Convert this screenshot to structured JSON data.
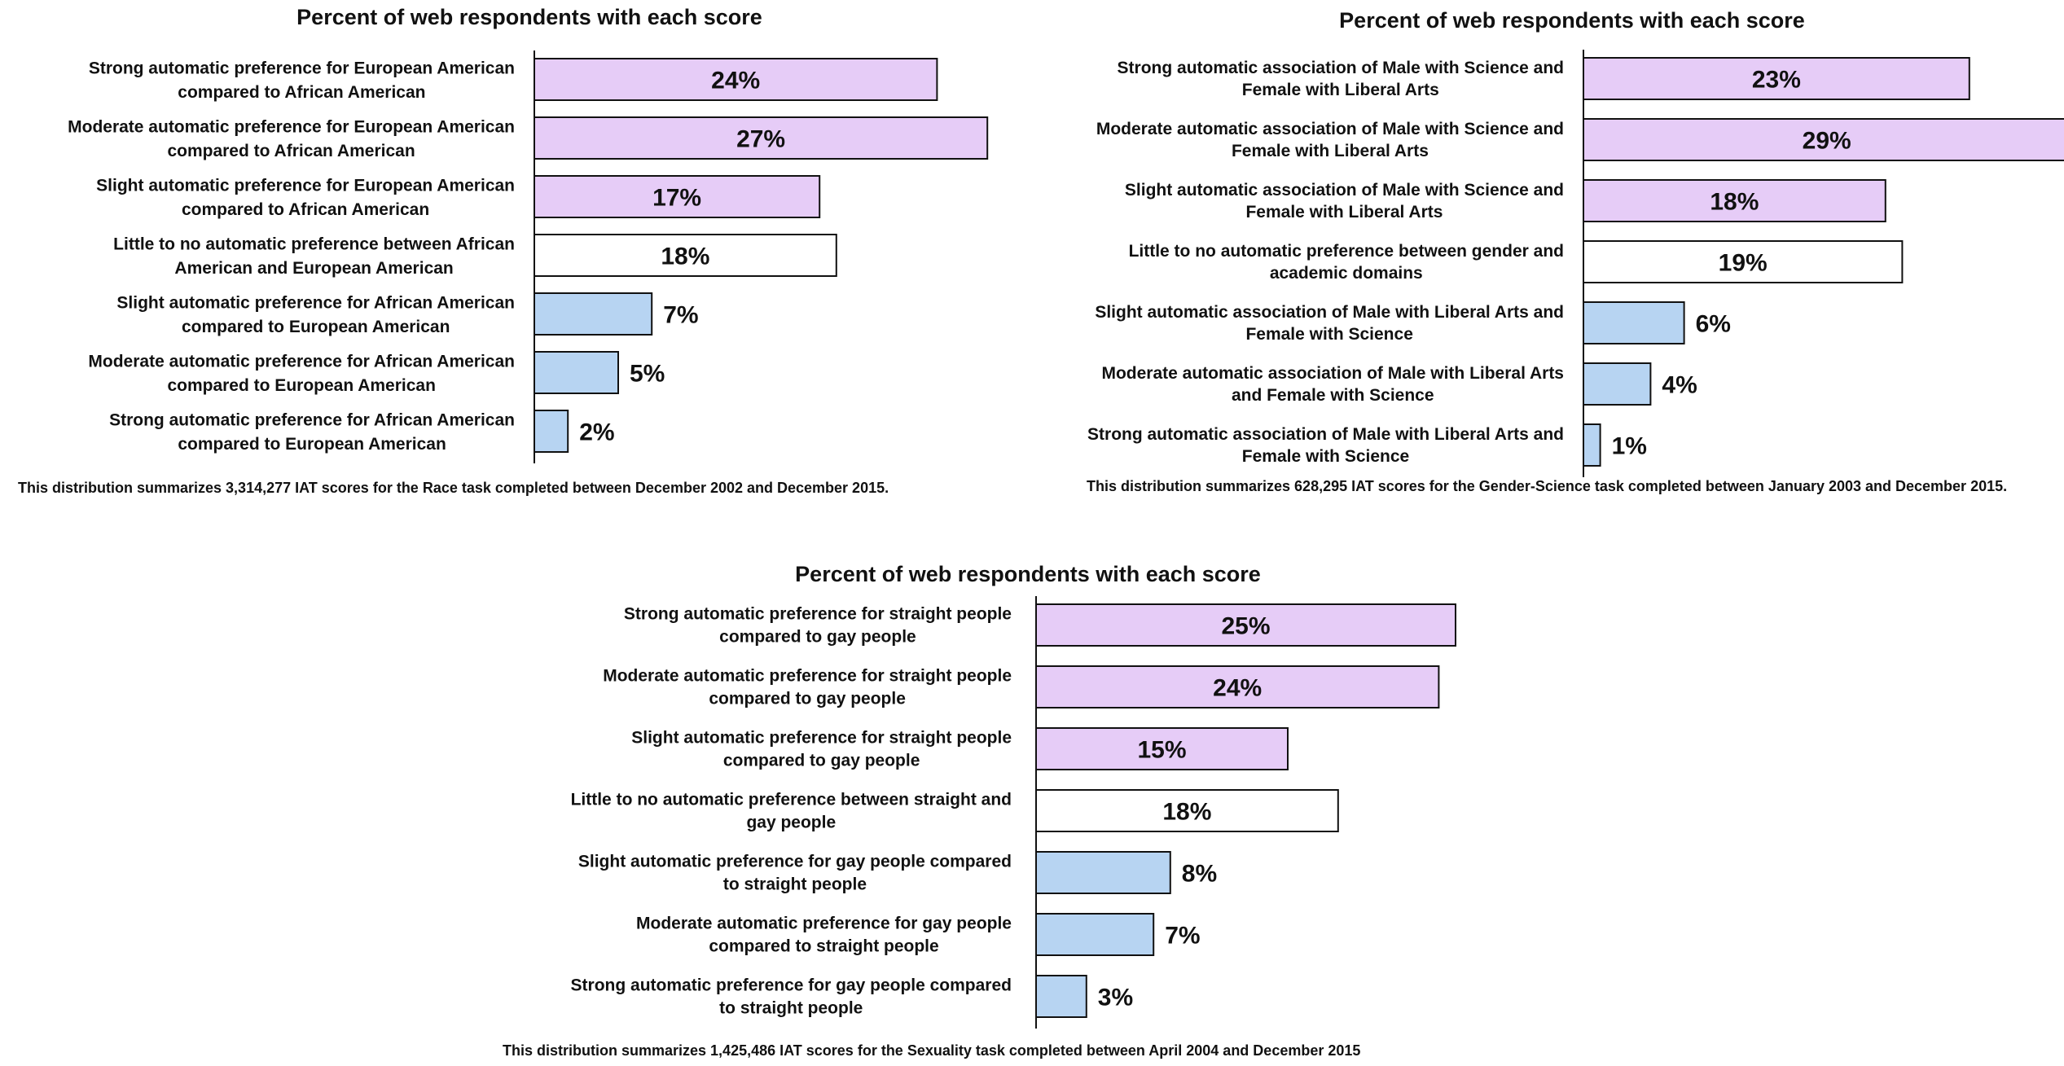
{
  "chart_data": [
    {
      "type": "bar",
      "title": "Percent of web respondents with each score",
      "categories": [
        "Strong automatic preference for European American compared to African American",
        "Moderate automatic preference for European American compared to African American",
        "Slight automatic preference for European American compared to African American",
        "Little to no automatic preference between African American and European American",
        "Slight automatic preference for African American compared to European American",
        "Moderate automatic preference for African American compared to European American",
        "Strong automatic preference for African American compared to European American"
      ],
      "category_lines": [
        [
          "Strong automatic preference for European American",
          "compared to African American"
        ],
        [
          "Moderate automatic preference for European American",
          "compared to African American"
        ],
        [
          "Slight automatic preference for European American",
          "compared to African American"
        ],
        [
          "Little to no automatic preference between African",
          "American and European American"
        ],
        [
          "Slight automatic preference for African American",
          "compared to European American"
        ],
        [
          "Moderate automatic preference for African American",
          "compared to European American"
        ],
        [
          "Strong automatic preference for African American",
          "compared to European American"
        ]
      ],
      "values": [
        24,
        27,
        17,
        18,
        7,
        5,
        2
      ],
      "value_labels": [
        "24%",
        "27%",
        "17%",
        "18%",
        "7%",
        "5%",
        "2%"
      ],
      "orientation": "horizontal",
      "footnote": "This distribution summarizes 3,314,277 IAT scores for the Race task completed between December 2002 and December 2015.",
      "colors": [
        "#e6ccf7",
        "#e6ccf7",
        "#e6ccf7",
        "#ffffff",
        "#b7d4f2",
        "#b7d4f2",
        "#b7d4f2"
      ]
    },
    {
      "type": "bar",
      "title": "Percent of web respondents with each score",
      "categories": [
        "Strong automatic association of Male with Science and Female with Liberal Arts",
        "Moderate automatic association of Male with Science and Female with Liberal Arts",
        "Slight automatic association of Male with Science and Female with Liberal Arts",
        "Little to no automatic preference between gender and academic domains",
        "Slight automatic association of Male with Liberal Arts and Female with Science",
        "Moderate automatic association of Male with Liberal Arts and Female with Science",
        "Strong automatic association of Male with Liberal Arts and Female with Science"
      ],
      "category_lines": [
        [
          "Strong automatic association of Male with Science and",
          "Female with Liberal Arts"
        ],
        [
          "Moderate automatic association of Male with Science and",
          "Female with Liberal Arts"
        ],
        [
          "Slight automatic association of Male with Science and",
          "Female with Liberal Arts"
        ],
        [
          "Little to no automatic preference between gender and",
          "academic domains"
        ],
        [
          "Slight automatic association of Male with Liberal Arts and",
          "Female with Science"
        ],
        [
          "Moderate automatic association of Male with Liberal Arts",
          "and Female with Science"
        ],
        [
          "Strong automatic association of Male with Liberal Arts and",
          "Female with Science"
        ]
      ],
      "values": [
        23,
        29,
        18,
        19,
        6,
        4,
        1
      ],
      "value_labels": [
        "23%",
        "29%",
        "18%",
        "19%",
        "6%",
        "4%",
        "1%"
      ],
      "orientation": "horizontal",
      "footnote": "This distribution summarizes 628,295 IAT scores for the Gender-Science task completed between January 2003 and December 2015.",
      "colors": [
        "#e6ccf7",
        "#e6ccf7",
        "#e6ccf7",
        "#ffffff",
        "#b7d4f2",
        "#b7d4f2",
        "#b7d4f2"
      ]
    },
    {
      "type": "bar",
      "title": "Percent of web respondents with each score",
      "categories": [
        "Strong automatic preference for straight people compared to gay people",
        "Moderate automatic preference for straight people compared to gay people",
        "Slight automatic preference for straight people compared to gay people",
        "Little to no automatic preference between straight and gay people",
        "Slight automatic preference for gay people compared to straight people",
        "Moderate automatic preference for gay people compared to straight people",
        "Strong automatic preference for gay people compared to straight people"
      ],
      "category_lines": [
        [
          "Strong automatic preference for straight people",
          "compared to gay people"
        ],
        [
          "Moderate automatic preference for straight people",
          "compared to gay people"
        ],
        [
          "Slight automatic preference for straight people",
          "compared to gay people"
        ],
        [
          "Little to no automatic preference between straight and",
          "gay people"
        ],
        [
          "Slight automatic preference for gay people compared",
          "to straight people"
        ],
        [
          "Moderate automatic preference for gay people",
          "compared to straight people"
        ],
        [
          "Strong automatic preference for gay people compared",
          "to straight people"
        ]
      ],
      "values": [
        25,
        24,
        15,
        18,
        8,
        7,
        3
      ],
      "value_labels": [
        "25%",
        "24%",
        "15%",
        "18%",
        "8%",
        "7%",
        "3%"
      ],
      "orientation": "horizontal",
      "footnote": "This distribution summarizes 1,425,486 IAT scores for the Sexuality task completed between April 2004 and December 2015",
      "colors": [
        "#e6ccf7",
        "#e6ccf7",
        "#e6ccf7",
        "#ffffff",
        "#b7d4f2",
        "#b7d4f2",
        "#b7d4f2"
      ]
    }
  ]
}
